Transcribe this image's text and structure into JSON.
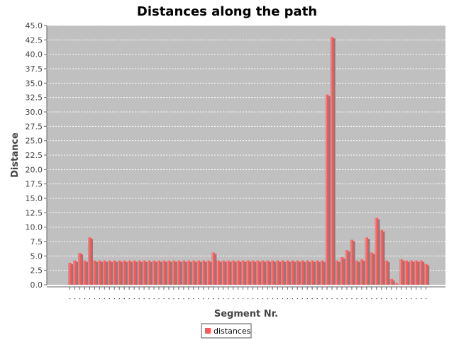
{
  "chart_data": {
    "type": "bar",
    "title": "Distances along the path",
    "xlabel": "Segment Nr.",
    "ylabel": "Distance",
    "ylim": [
      0,
      45
    ],
    "ytick_step": 2.5,
    "grid": true,
    "legend": "bottom-center",
    "series": [
      {
        "name": "distances",
        "color": "#ff5555",
        "values": [
          3.8,
          4.2,
          5.5,
          4.2,
          8.2,
          4.2,
          4.2,
          4.2,
          4.2,
          4.2,
          4.2,
          4.2,
          4.2,
          4.2,
          4.2,
          4.2,
          4.2,
          4.2,
          4.2,
          4.2,
          4.2,
          4.2,
          4.2,
          4.2,
          4.2,
          4.2,
          4.2,
          4.2,
          4.2,
          5.6,
          4.2,
          4.2,
          4.2,
          4.2,
          4.2,
          4.2,
          4.2,
          4.2,
          4.2,
          4.2,
          4.2,
          4.2,
          4.2,
          4.2,
          4.2,
          4.2,
          4.2,
          4.2,
          4.2,
          4.2,
          4.2,
          4.2,
          33.0,
          43.0,
          4.2,
          4.8,
          6.0,
          7.8,
          4.2,
          4.4,
          8.2,
          5.6,
          11.6,
          9.5,
          4.2,
          1.0,
          0.3,
          4.4,
          4.2,
          4.2,
          4.2,
          4.2,
          3.6
        ]
      }
    ]
  }
}
